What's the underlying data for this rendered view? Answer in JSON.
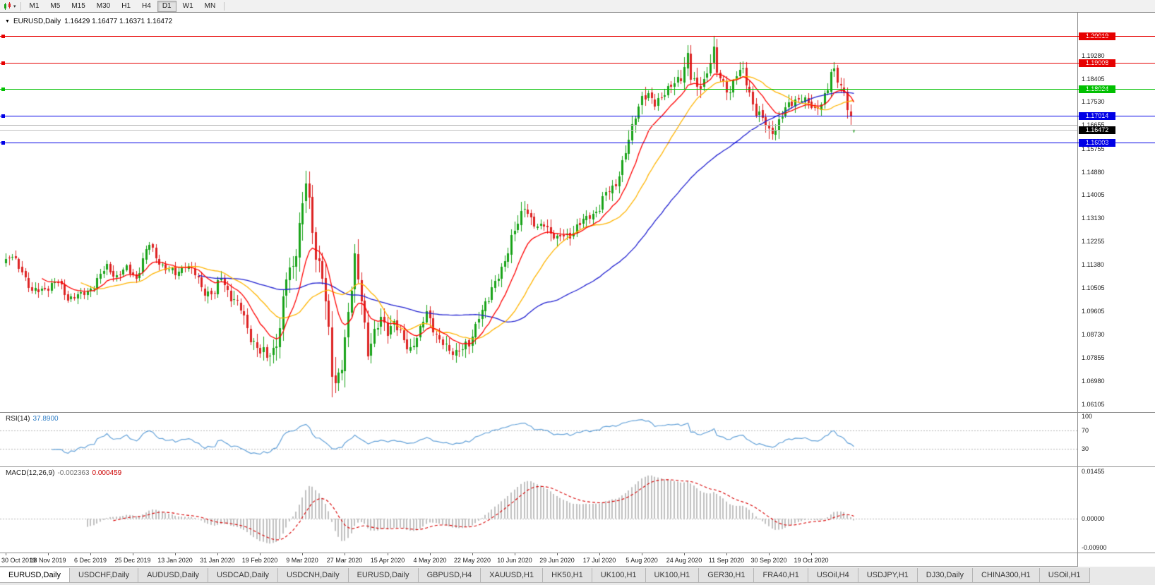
{
  "toolbar": {
    "dropdown_glyph": "▾",
    "timeframes": [
      "M1",
      "M5",
      "M15",
      "M30",
      "H1",
      "H4",
      "D1",
      "W1",
      "MN"
    ],
    "active_timeframe": "D1"
  },
  "chart_header": {
    "collapse_glyph": "▼",
    "symbol_period": "EURUSD,Daily",
    "ohlc": "1.16429 1.16477 1.16371 1.16472"
  },
  "price_scale": {
    "ticks": [
      "1.19280",
      "1.18405",
      "1.17530",
      "1.16655",
      "1.15755",
      "1.14880",
      "1.14005",
      "1.13130",
      "1.12255",
      "1.11380",
      "1.10505",
      "1.09605",
      "1.08730",
      "1.07855",
      "1.06980",
      "1.06105"
    ],
    "current_price": {
      "label": "1.16472",
      "bg": "#000000",
      "fg": "#ffffff"
    }
  },
  "h_lines": [
    {
      "label": "1.20019",
      "value": 1.20019,
      "color": "#e60000"
    },
    {
      "label": "1.19008",
      "value": 1.19008,
      "color": "#e60000"
    },
    {
      "label": "1.18024",
      "value": 1.18024,
      "color": "#00c000"
    },
    {
      "label": "1.17014",
      "value": 1.17014,
      "color": "#0000e6"
    },
    {
      "label": "1.16003",
      "value": 1.16003,
      "color": "#0000e6"
    }
  ],
  "gray_line": {
    "value": 1.16655,
    "color": "#b4b4b4"
  },
  "rsi": {
    "label_name": "RSI(14)",
    "label_value": "37.8900",
    "value_color": "#2f7ec7",
    "ticks": [
      "100",
      "70",
      "30"
    ],
    "tick_values": [
      100,
      70,
      30
    ],
    "levels": [
      70,
      30
    ],
    "period": 14,
    "line_color": "#63a1d8"
  },
  "macd": {
    "label_name": "MACD(12,26,9)",
    "value_main": "-0.002363",
    "value_signal": "0.000459",
    "value_main_color": "#707070",
    "value_signal_color": "#cc0000",
    "ticks": [
      "0.01455",
      "0.00000",
      "-0.00900"
    ],
    "tick_values": [
      0.01455,
      0,
      -0.009
    ],
    "fast": 12,
    "slow": 26,
    "signal": 9,
    "hist_color": "#c0c0c0",
    "signal_color": "#d80000",
    "range": {
      "max": 0.0152,
      "min": -0.0098
    }
  },
  "time_axis": {
    "labels": [
      "30 Oct 2019",
      "18 Nov 2019",
      "6 Dec 2019",
      "25 Dec 2019",
      "13 Jan 2020",
      "31 Jan 2020",
      "19 Feb 2020",
      "9 Mar 2020",
      "27 Mar 2020",
      "15 Apr 2020",
      "4 May 2020",
      "22 May 2020",
      "10 Jun 2020",
      "29 Jun 2020",
      "17 Jul 2020",
      "5 Aug 2020",
      "24 Aug 2020",
      "11 Sep 2020",
      "30 Sep 2020",
      "19 Oct 2020"
    ],
    "bars_per_label": 13
  },
  "tabs": {
    "items": [
      "EURUSD,Daily",
      "USDCHF,Daily",
      "AUDUSD,Daily",
      "USDCAD,Daily",
      "USDCNH,Daily",
      "EURUSD,Daily",
      "GBPUSD,H4",
      "XAUUSD,H1",
      "HK50,H1",
      "UK100,H1",
      "UK100,H1",
      "GER30,H1",
      "FRA40,H1",
      "USOil,H4",
      "USDJPY,H1",
      "DJ30,Daily",
      "CHINA300,H1",
      "USOil,H1"
    ],
    "active_index": 0
  },
  "chart_data": {
    "type": "candlestick",
    "symbol": "EURUSD",
    "period": "Daily",
    "bar_count": 261,
    "price_range": {
      "top": 1.209,
      "bottom": 1.058
    },
    "up_color": "#18a318",
    "down_color": "#dd2222",
    "ma": [
      {
        "period": 60,
        "type": "sma",
        "color": "#2020d0"
      },
      {
        "period": 24,
        "type": "sma",
        "color": "#ffb400"
      },
      {
        "period": 12,
        "type": "ema",
        "color": "#ff0000"
      }
    ],
    "anchors": [
      [
        0,
        1.115
      ],
      [
        2,
        1.1163
      ],
      [
        5,
        1.112
      ],
      [
        8,
        1.1028
      ],
      [
        12,
        1.1052
      ],
      [
        16,
        1.1068
      ],
      [
        19,
        1.1015
      ],
      [
        23,
        1.1018
      ],
      [
        27,
        1.1062
      ],
      [
        31,
        1.1128
      ],
      [
        34,
        1.1096
      ],
      [
        37,
        1.112
      ],
      [
        40,
        1.1088
      ],
      [
        43,
        1.1188
      ],
      [
        44,
        1.1212
      ],
      [
        46,
        1.1168
      ],
      [
        49,
        1.112
      ],
      [
        52,
        1.1103
      ],
      [
        55,
        1.114
      ],
      [
        58,
        1.1098
      ],
      [
        61,
        1.1038
      ],
      [
        64,
        1.1025
      ],
      [
        66,
        1.1092
      ],
      [
        69,
        1.1018
      ],
      [
        72,
        1.0965
      ],
      [
        75,
        1.087
      ],
      [
        78,
        1.0798
      ],
      [
        80,
        1.079
      ],
      [
        82,
        1.0825
      ],
      [
        84,
        1.089
      ],
      [
        86,
        1.1082
      ],
      [
        88,
        1.1138
      ],
      [
        90,
        1.129
      ],
      [
        92,
        1.1442
      ],
      [
        93,
        1.1342
      ],
      [
        95,
        1.1185
      ],
      [
        97,
        1.112
      ],
      [
        98,
        1.0995
      ],
      [
        100,
        1.0715
      ],
      [
        101,
        1.0675
      ],
      [
        103,
        1.079
      ],
      [
        104,
        1.086
      ],
      [
        106,
        1.1038
      ],
      [
        107,
        1.114
      ],
      [
        109,
        1.1025
      ],
      [
        111,
        1.0815
      ],
      [
        113,
        1.086
      ],
      [
        115,
        1.0935
      ],
      [
        117,
        1.09
      ],
      [
        119,
        1.0915
      ],
      [
        121,
        1.0865
      ],
      [
        124,
        1.0825
      ],
      [
        127,
        1.088
      ],
      [
        129,
        1.096
      ],
      [
        131,
        1.0905
      ],
      [
        133,
        1.0845
      ],
      [
        136,
        1.081
      ],
      [
        139,
        1.082
      ],
      [
        142,
        1.0825
      ],
      [
        145,
        1.0955
      ],
      [
        148,
        1.1
      ],
      [
        151,
        1.1105
      ],
      [
        154,
        1.1185
      ],
      [
        157,
        1.1298
      ],
      [
        159,
        1.1375
      ],
      [
        161,
        1.13
      ],
      [
        163,
        1.1265
      ],
      [
        165,
        1.1305
      ],
      [
        167,
        1.126
      ],
      [
        169,
        1.1225
      ],
      [
        171,
        1.125
      ],
      [
        173,
        1.1255
      ],
      [
        176,
        1.1285
      ],
      [
        179,
        1.133
      ],
      [
        182,
        1.1345
      ],
      [
        184,
        1.1405
      ],
      [
        187,
        1.145
      ],
      [
        189,
        1.1515
      ],
      [
        191,
        1.16
      ],
      [
        193,
        1.1715
      ],
      [
        195,
        1.1775
      ],
      [
        197,
        1.1765
      ],
      [
        199,
        1.1745
      ],
      [
        201,
        1.1785
      ],
      [
        203,
        1.1795
      ],
      [
        205,
        1.1815
      ],
      [
        207,
        1.1855
      ],
      [
        209,
        1.1935
      ],
      [
        210,
        1.1845
      ],
      [
        212,
        1.1795
      ],
      [
        214,
        1.184
      ],
      [
        216,
        1.1915
      ],
      [
        217,
        1.194
      ],
      [
        218,
        1.1855
      ],
      [
        220,
        1.182
      ],
      [
        222,
        1.18
      ],
      [
        224,
        1.1855
      ],
      [
        226,
        1.1865
      ],
      [
        228,
        1.179
      ],
      [
        230,
        1.1715
      ],
      [
        232,
        1.1685
      ],
      [
        234,
        1.164
      ],
      [
        236,
        1.166
      ],
      [
        238,
        1.17
      ],
      [
        240,
        1.1735
      ],
      [
        242,
        1.1765
      ],
      [
        244,
        1.177
      ],
      [
        246,
        1.174
      ],
      [
        248,
        1.1722
      ],
      [
        250,
        1.1758
      ],
      [
        252,
        1.18
      ],
      [
        253,
        1.1855
      ],
      [
        254,
        1.1862
      ],
      [
        255,
        1.184
      ],
      [
        256,
        1.182
      ],
      [
        257,
        1.1795
      ],
      [
        258,
        1.1738
      ],
      [
        259,
        1.1682
      ],
      [
        260,
        1.1647
      ]
    ],
    "volatility_anchors": [
      [
        0,
        0.0045
      ],
      [
        30,
        0.004
      ],
      [
        55,
        0.0038
      ],
      [
        68,
        0.005
      ],
      [
        78,
        0.0068
      ],
      [
        85,
        0.009
      ],
      [
        92,
        0.0112
      ],
      [
        100,
        0.0125
      ],
      [
        105,
        0.0105
      ],
      [
        110,
        0.0092
      ],
      [
        118,
        0.007
      ],
      [
        126,
        0.0058
      ],
      [
        135,
        0.005
      ],
      [
        144,
        0.0052
      ],
      [
        152,
        0.0058
      ],
      [
        159,
        0.0065
      ],
      [
        168,
        0.0052
      ],
      [
        177,
        0.0046
      ],
      [
        186,
        0.0052
      ],
      [
        193,
        0.0065
      ],
      [
        200,
        0.0052
      ],
      [
        208,
        0.0062
      ],
      [
        217,
        0.0068
      ],
      [
        224,
        0.0048
      ],
      [
        232,
        0.0052
      ],
      [
        236,
        0.006
      ],
      [
        244,
        0.0044
      ],
      [
        252,
        0.0048
      ],
      [
        258,
        0.006
      ],
      [
        260,
        0.0055
      ]
    ],
    "pinned_bars": [
      {
        "i": 92,
        "high": 1.1492
      },
      {
        "i": 100,
        "low": 1.0636
      },
      {
        "i": 209,
        "high": 1.1966
      },
      {
        "i": 217,
        "high": 1.2001
      },
      {
        "i": 234,
        "low": 1.1612
      },
      {
        "i": 260,
        "open": 1.16429,
        "high": 1.16477,
        "low": 1.16371,
        "close": 1.16472
      }
    ]
  }
}
